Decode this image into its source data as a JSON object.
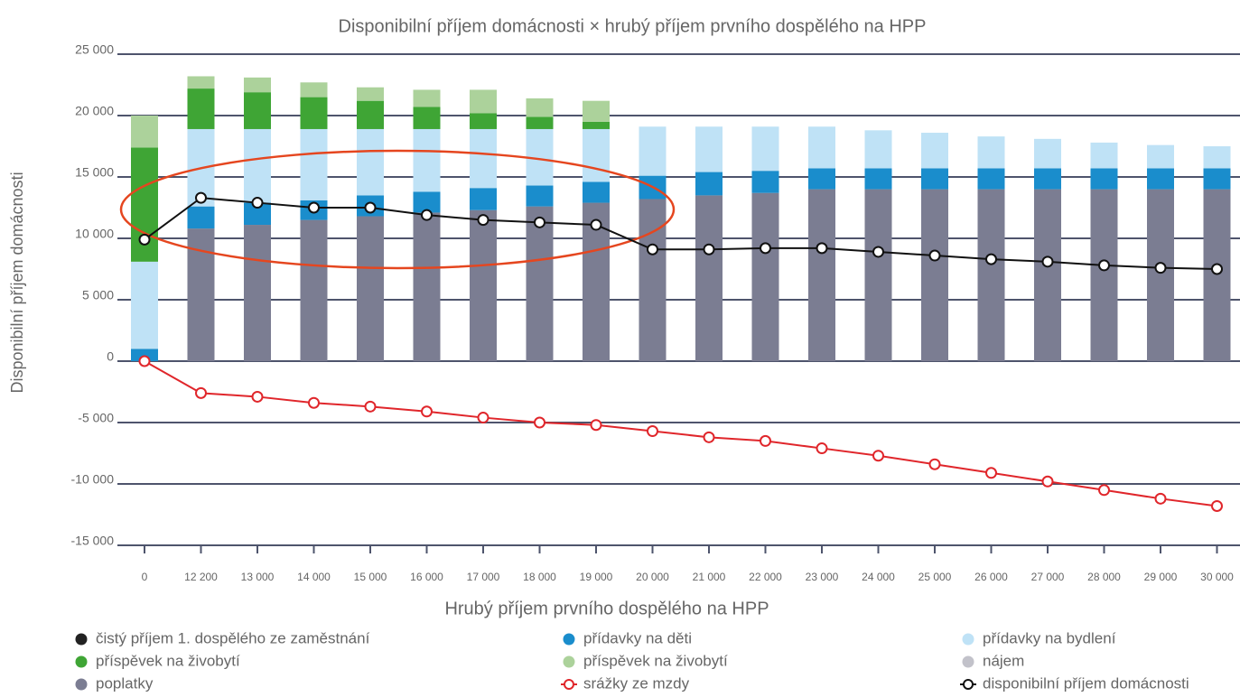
{
  "chart_data": {
    "type": "bar",
    "title": "Disponibilní příjem domácnosti × hrubý příjem prvního dospělého na HPP",
    "x_label": "Hrubý příjem prvního dospělého na HPP",
    "y_label": "Disponibilní příjem domácnosti",
    "categories": [
      "0",
      "12 200",
      "13 000",
      "14 000",
      "15 000",
      "16 000",
      "17 000",
      "18 000",
      "19 000",
      "20 000",
      "21 000",
      "22 000",
      "23 000",
      "24 000",
      "25 000",
      "26 000",
      "27 000",
      "28 000",
      "29 000",
      "30 000"
    ],
    "ylim": [
      -15000,
      25000
    ],
    "yticks": [
      {
        "value": -15000,
        "label": "-15 000"
      },
      {
        "value": -10000,
        "label": "-10 000"
      },
      {
        "value": -5000,
        "label": "-5 000"
      },
      0,
      {
        "value": 5000,
        "label": "5 000"
      },
      {
        "value": 10000,
        "label": "10 000"
      },
      {
        "value": 15000,
        "label": "15 000"
      },
      {
        "value": 20000,
        "label": "20 000"
      },
      {
        "value": 25000,
        "label": "25 000"
      }
    ],
    "grid": true,
    "series": [
      {
        "name": "poplatky",
        "type": "bar",
        "color": "#7b7d92",
        "values": [
          0,
          10800,
          11100,
          11500,
          11800,
          12100,
          12300,
          12600,
          12900,
          13200,
          13500,
          13700,
          14000,
          14000,
          14000,
          14000,
          14000,
          14000,
          14000,
          14000
        ]
      },
      {
        "name": "přídavky na děti",
        "type": "bar",
        "color": "#1a8dcc",
        "values": [
          1000,
          1800,
          1800,
          1600,
          1700,
          1700,
          1800,
          1700,
          1700,
          1900,
          1900,
          1800,
          1700,
          1700,
          1700,
          1700,
          1700,
          1700,
          1700,
          1700
        ]
      },
      {
        "name": "přídavky na bydlení",
        "type": "bar",
        "color": "#bfe2f6",
        "values": [
          7100,
          6300,
          6000,
          5800,
          5400,
          5100,
          4800,
          4600,
          4300,
          4000,
          3700,
          3600,
          3400,
          3100,
          2900,
          2600,
          2400,
          2100,
          1900,
          1800
        ]
      },
      {
        "name": "příspěvek na živobytí",
        "type": "bar",
        "color": "#3fa535",
        "values": [
          9300,
          3300,
          3000,
          2600,
          2300,
          1800,
          1300,
          1000,
          600,
          null,
          null,
          null,
          null,
          null,
          null,
          null,
          null,
          null,
          null,
          null
        ]
      },
      {
        "name": "příspěvek na živobytí",
        "type": "bar",
        "color": "#acd29b",
        "values": [
          2600,
          1000,
          1200,
          1200,
          1100,
          1400,
          1900,
          1500,
          1700,
          null,
          null,
          null,
          null,
          null,
          null,
          null,
          null,
          null,
          null,
          null
        ]
      },
      {
        "name": "čistý příjem 1. dospělého ze zaměstnání",
        "type": "bar",
        "color": "#222222"
      },
      {
        "name": "nájem",
        "type": "bar",
        "color": "#c2c2ca"
      },
      {
        "name": "srážky ze mzdy",
        "type": "line",
        "color": "#e0262b",
        "values": [
          0,
          -2600,
          -2900,
          -3400,
          -3700,
          -4100,
          -4600,
          -5000,
          -5200,
          -5700,
          -6200,
          -6500,
          -7100,
          -7700,
          -8400,
          -9100,
          -9800,
          -10500,
          -11200,
          -11800
        ]
      },
      {
        "name": "disponibilní příjem domácnosti",
        "type": "line",
        "color": "#111111",
        "values": [
          9900,
          13300,
          12900,
          12500,
          12500,
          11900,
          11500,
          11300,
          11100,
          9100,
          9100,
          9200,
          9200,
          8900,
          8600,
          8300,
          8100,
          7800,
          7600,
          7500
        ]
      }
    ]
  }
}
